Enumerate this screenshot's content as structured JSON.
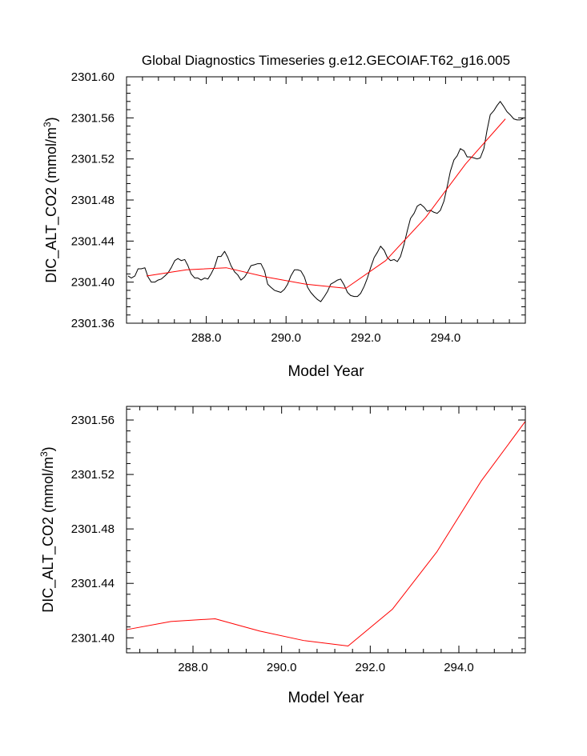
{
  "chart_data": [
    {
      "type": "line",
      "title": "Global Diagnostics Timeseries g.e12.GECOIAF.T62_g16.005",
      "xlabel": "Model Year",
      "ylabel": "DIC_ALT_CO2 (mmol/m",
      "ylabel_sup": "3",
      "ylabel_close": ")",
      "xlim": [
        286.0,
        296.0
      ],
      "ylim": [
        2301.36,
        2301.6
      ],
      "xticks": [
        288.0,
        290.0,
        292.0,
        294.0
      ],
      "xtick_labels": [
        "288.0",
        "290.0",
        "292.0",
        "294.0"
      ],
      "yticks": [
        2301.36,
        2301.4,
        2301.44,
        2301.48,
        2301.52,
        2301.56,
        2301.6
      ],
      "ytick_labels": [
        "2301.36",
        "2301.40",
        "2301.44",
        "2301.48",
        "2301.52",
        "2301.56",
        "2301.60"
      ],
      "series": [
        {
          "color": "#000000",
          "x": [
            286.04,
            286.12,
            286.21,
            286.29,
            286.37,
            286.46,
            286.54,
            286.62,
            286.71,
            286.79,
            286.87,
            286.96,
            287.04,
            287.12,
            287.21,
            287.29,
            287.37,
            287.46,
            287.54,
            287.62,
            287.71,
            287.79,
            287.87,
            287.96,
            288.04,
            288.12,
            288.21,
            288.29,
            288.37,
            288.46,
            288.54,
            288.62,
            288.71,
            288.79,
            288.87,
            288.96,
            289.04,
            289.12,
            289.21,
            289.29,
            289.37,
            289.46,
            289.54,
            289.62,
            289.71,
            289.79,
            289.87,
            289.96,
            290.04,
            290.12,
            290.21,
            290.29,
            290.37,
            290.46,
            290.54,
            290.62,
            290.71,
            290.79,
            290.87,
            290.96,
            291.04,
            291.12,
            291.21,
            291.29,
            291.37,
            291.46,
            291.54,
            291.62,
            291.71,
            291.79,
            291.87,
            291.96,
            292.04,
            292.12,
            292.21,
            292.29,
            292.37,
            292.46,
            292.54,
            292.62,
            292.71,
            292.79,
            292.87,
            292.96,
            293.04,
            293.12,
            293.21,
            293.29,
            293.37,
            293.46,
            293.54,
            293.62,
            293.71,
            293.79,
            293.87,
            293.96,
            294.04,
            294.12,
            294.21,
            294.29,
            294.37,
            294.46,
            294.54,
            294.62,
            294.71,
            294.79,
            294.87,
            294.96,
            295.04,
            295.12,
            295.21,
            295.29,
            295.37,
            295.46,
            295.54,
            295.62,
            295.71,
            295.79,
            295.87,
            295.96
          ],
          "values": [
            2301.406,
            2301.404,
            2301.406,
            2301.413,
            2301.413,
            2301.414,
            2301.405,
            2301.4,
            2301.4,
            2301.402,
            2301.403,
            2301.406,
            2301.409,
            2301.414,
            2301.421,
            2301.423,
            2301.421,
            2301.422,
            2301.416,
            2301.408,
            2301.404,
            2301.404,
            2301.402,
            2301.404,
            2301.403,
            2301.408,
            2301.415,
            2301.425,
            2301.425,
            2301.43,
            2301.424,
            2301.416,
            2301.41,
            2301.407,
            2301.402,
            2301.405,
            2301.41,
            2301.416,
            2301.417,
            2301.418,
            2301.418,
            2301.411,
            2301.398,
            2301.395,
            2301.392,
            2301.391,
            2301.39,
            2301.393,
            2301.398,
            2301.406,
            2301.412,
            2301.412,
            2301.411,
            2301.405,
            2301.395,
            2301.39,
            2301.386,
            2301.383,
            2301.381,
            2301.386,
            2301.391,
            2301.398,
            2301.4,
            2301.402,
            2301.403,
            2301.397,
            2301.39,
            2301.387,
            2301.386,
            2301.386,
            2301.389,
            2301.396,
            2301.404,
            2301.414,
            2301.424,
            2301.429,
            2301.435,
            2301.431,
            2301.424,
            2301.421,
            2301.422,
            2301.42,
            2301.425,
            2301.437,
            2301.45,
            2301.462,
            2301.467,
            2301.474,
            2301.476,
            2301.473,
            2301.469,
            2301.47,
            2301.468,
            2301.467,
            2301.47,
            2301.479,
            2301.493,
            2301.508,
            2301.519,
            2301.523,
            2301.53,
            2301.528,
            2301.522,
            2301.522,
            2301.521,
            2301.52,
            2301.521,
            2301.53,
            2301.548,
            2301.563,
            2301.567,
            2301.572,
            2301.576,
            2301.571,
            2301.566,
            2301.563,
            2301.559,
            2301.558,
            2301.558,
            2301.56
          ]
        },
        {
          "color": "#ff0000",
          "x": [
            286.5,
            287.5,
            288.5,
            289.5,
            290.5,
            291.5,
            292.5,
            293.5,
            294.5,
            295.5
          ],
          "values": [
            2301.406,
            2301.412,
            2301.414,
            2301.405,
            2301.398,
            2301.394,
            2301.421,
            2301.463,
            2301.515,
            2301.559
          ]
        }
      ]
    },
    {
      "type": "line",
      "xlabel": "Model Year",
      "ylabel": "DIC_ALT_CO2 (mmol/m",
      "ylabel_sup": "3",
      "ylabel_close": ")",
      "xlim": [
        286.5,
        295.5
      ],
      "ylim": [
        2301.389,
        2301.57
      ],
      "xticks": [
        288.0,
        290.0,
        292.0,
        294.0
      ],
      "xtick_labels": [
        "288.0",
        "290.0",
        "292.0",
        "294.0"
      ],
      "yticks": [
        2301.4,
        2301.44,
        2301.48,
        2301.52,
        2301.56
      ],
      "ytick_labels": [
        "2301.40",
        "2301.44",
        "2301.48",
        "2301.52",
        "2301.56"
      ],
      "series": [
        {
          "color": "#ff0000",
          "x": [
            286.5,
            287.5,
            288.5,
            289.5,
            290.5,
            291.5,
            292.5,
            293.5,
            294.5,
            295.5
          ],
          "values": [
            2301.406,
            2301.412,
            2301.414,
            2301.405,
            2301.398,
            2301.394,
            2301.421,
            2301.463,
            2301.515,
            2301.559
          ]
        }
      ]
    }
  ]
}
